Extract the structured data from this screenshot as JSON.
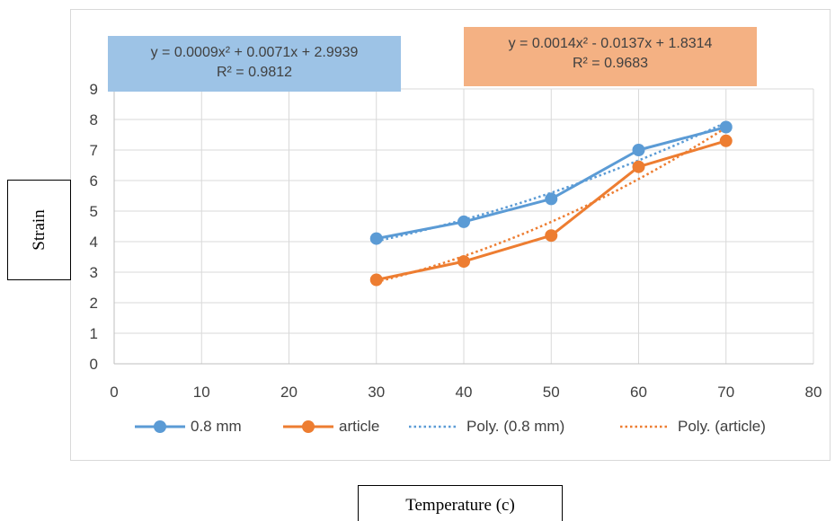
{
  "chart_data": {
    "type": "line",
    "title": "",
    "xlabel": "Temperature (c)",
    "ylabel": "Strain",
    "xlim": [
      0,
      80
    ],
    "ylim": [
      0,
      9
    ],
    "xticks": [
      0,
      10,
      20,
      30,
      40,
      50,
      60,
      70,
      80
    ],
    "yticks": [
      0,
      1,
      2,
      3,
      4,
      5,
      6,
      7,
      8,
      9
    ],
    "grid": true,
    "legend_position": "bottom",
    "series": [
      {
        "name": "0.8 mm",
        "color": "#5b9bd5",
        "style": "solid-marker",
        "x": [
          30,
          40,
          50,
          60,
          70
        ],
        "y": [
          4.1,
          4.65,
          5.4,
          7.0,
          7.75
        ]
      },
      {
        "name": "article",
        "color": "#ed7d31",
        "style": "solid-marker",
        "x": [
          30,
          40,
          50,
          60,
          70
        ],
        "y": [
          2.75,
          3.35,
          4.2,
          6.45,
          7.3
        ]
      },
      {
        "name": "Poly. (0.8 mm)",
        "color": "#5b9bd5",
        "style": "dotted",
        "trend_of": "0.8 mm"
      },
      {
        "name": "Poly. (article)",
        "color": "#ed7d31",
        "style": "dotted",
        "trend_of": "article"
      }
    ],
    "trendlines": [
      {
        "series": "0.8 mm",
        "equation": "y = 0.0009x² + 0.0071x + 2.9939",
        "r2": "R² = 0.9812",
        "coeffs": [
          0.0009,
          0.0071,
          2.9939
        ],
        "box_color": "#9dc3e6"
      },
      {
        "series": "article",
        "equation": "y = 0.0014x² - 0.0137x + 1.8314",
        "r2": "R² = 0.9683",
        "coeffs": [
          0.0014,
          -0.0137,
          1.8314
        ],
        "box_color": "#f4b183"
      }
    ]
  }
}
